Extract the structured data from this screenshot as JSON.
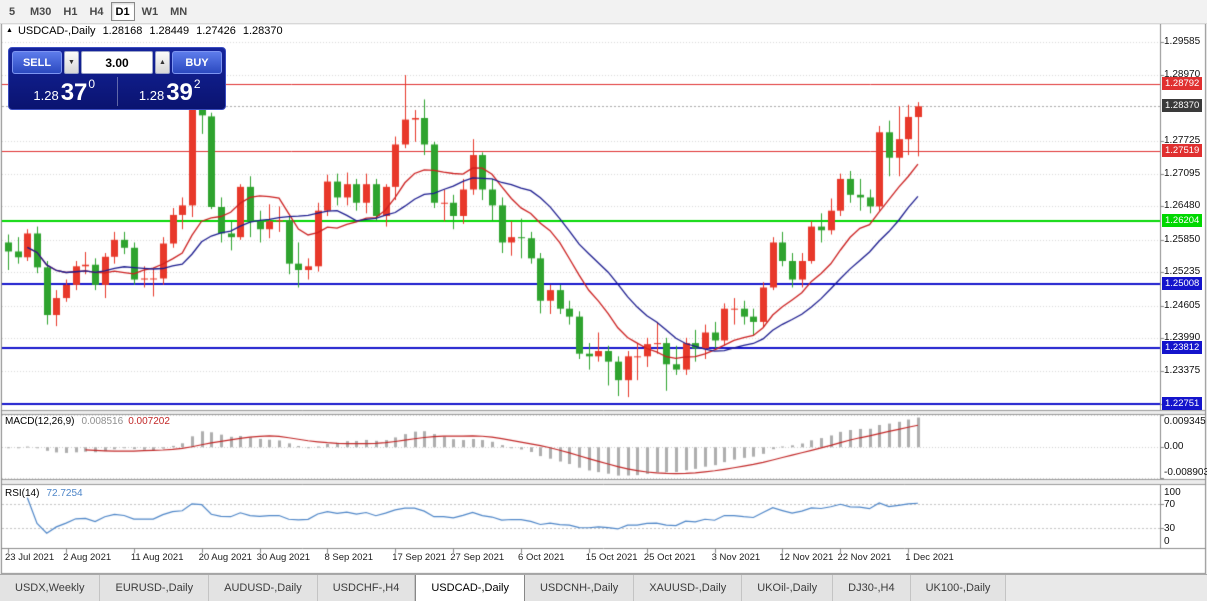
{
  "toolbar": {
    "timeframes": [
      "5",
      "M30",
      "H1",
      "H4",
      "D1",
      "W1",
      "MN"
    ],
    "active": "D1"
  },
  "chart_header": {
    "marker_icon": "▲",
    "title": "USDCAD-,Daily",
    "open": "1.28168",
    "high": "1.28449",
    "low": "1.27426",
    "close": "1.28370"
  },
  "trade_panel": {
    "sell_label": "SELL",
    "buy_label": "BUY",
    "volume": "3.00",
    "spin_down_icon": "▼",
    "spin_up_icon": "▲",
    "bid": {
      "prefix": "1.28",
      "big": "37",
      "sup": "0"
    },
    "ask": {
      "prefix": "1.28",
      "big": "39",
      "sup": "2"
    }
  },
  "chart_data": {
    "type": "candlestick",
    "symbol": "USDCAD-",
    "timeframe": "Daily",
    "current_bar": {
      "open": "1.28168",
      "high": "1.28449",
      "low": "1.27426",
      "close": "1.28370"
    },
    "current_price": "1.28370",
    "price_top": 1.29717,
    "price_bottom": 1.22637,
    "y_axis_ticks": [
      "1.29585",
      "1.28970",
      "1.27725",
      "1.27095",
      "1.26480",
      "1.25850",
      "1.25235",
      "1.24605",
      "1.23990",
      "1.23375",
      "1.22745"
    ],
    "x_ticks": [
      {
        "label": "23 Jul 2021",
        "index": 0
      },
      {
        "label": "2 Aug 2021",
        "index": 6
      },
      {
        "label": "11 Aug 2021",
        "index": 13
      },
      {
        "label": "20 Aug 2021",
        "index": 20
      },
      {
        "label": "30 Aug 2021",
        "index": 26
      },
      {
        "label": "8 Sep 2021",
        "index": 33
      },
      {
        "label": "17 Sep 2021",
        "index": 40
      },
      {
        "label": "27 Sep 2021",
        "index": 46
      },
      {
        "label": "6 Oct 2021",
        "index": 53
      },
      {
        "label": "15 Oct 2021",
        "index": 60
      },
      {
        "label": "25 Oct 2021",
        "index": 66
      },
      {
        "label": "3 Nov 2021",
        "index": 73
      },
      {
        "label": "12 Nov 2021",
        "index": 80
      },
      {
        "label": "22 Nov 2021",
        "index": 86
      },
      {
        "label": "1 Dec 2021",
        "index": 93
      }
    ],
    "levels": [
      {
        "price": 1.28792,
        "label": "1.28792",
        "color": "#e03030",
        "width": 1
      },
      {
        "price": 1.27519,
        "label": "1.27519",
        "color": "#e03030",
        "width": 1
      },
      {
        "price": 1.26204,
        "label": "1.26204",
        "color": "#00d800",
        "width": 2
      },
      {
        "price": 1.25008,
        "label": "1.25008",
        "color": "#1414cc",
        "width": 2
      },
      {
        "price": 1.23812,
        "label": "1.23812",
        "color": "#1414cc",
        "width": 2
      },
      {
        "price": 1.22751,
        "label": "1.22751",
        "color": "#1414cc",
        "width": 2
      }
    ],
    "bull_color": "#e8382a",
    "bear_color": "#2ea32e",
    "ma_fast_color": "#cc2020",
    "ma_slow_color": "#1c1c8f",
    "grid_color": "#d8d8d8",
    "bid_tag_bg": "#3a3a3a",
    "open": [
      1.258,
      1.2563,
      1.2552,
      1.2597,
      1.2533,
      1.2443,
      1.2475,
      1.25,
      1.2535,
      1.2538,
      1.25,
      1.2553,
      1.2585,
      1.257,
      1.251,
      1.2512,
      1.2512,
      1.2578,
      1.2632,
      1.265,
      1.2832,
      1.2818,
      1.2647,
      1.2597,
      1.259,
      1.2685,
      1.262,
      1.2605,
      1.262,
      1.2622,
      1.254,
      1.2528,
      1.2535,
      1.264,
      1.2695,
      1.2665,
      1.269,
      1.2655,
      1.269,
      1.263,
      1.2685,
      1.2765,
      1.2812,
      1.2815,
      1.2765,
      1.2655,
      1.2655,
      1.263,
      1.268,
      1.2745,
      1.268,
      1.265,
      1.258,
      1.259,
      1.2588,
      1.255,
      1.247,
      1.249,
      1.2455,
      1.244,
      1.237,
      1.2365,
      1.2375,
      1.2355,
      1.232,
      1.2365,
      1.2365,
      1.2388,
      1.239,
      1.235,
      1.234,
      1.239,
      1.238,
      1.241,
      1.2395,
      1.2455,
      1.2455,
      1.244,
      1.243,
      1.2495,
      1.258,
      1.2545,
      1.251,
      1.2545,
      1.261,
      1.2603,
      1.264,
      1.27,
      1.267,
      1.2665,
      1.2648,
      1.2788,
      1.274,
      1.2775,
      1.28168
    ],
    "high": [
      1.2595,
      1.259,
      1.2605,
      1.261,
      1.2545,
      1.249,
      1.251,
      1.2545,
      1.2562,
      1.255,
      1.256,
      1.26,
      1.26,
      1.258,
      1.2535,
      1.253,
      1.259,
      1.2645,
      1.2665,
      1.2841,
      1.286,
      1.2825,
      1.2665,
      1.262,
      1.269,
      1.2705,
      1.264,
      1.2652,
      1.2648,
      1.263,
      1.258,
      1.255,
      1.2655,
      1.2708,
      1.271,
      1.2712,
      1.27,
      1.271,
      1.27,
      1.269,
      1.278,
      1.2896,
      1.283,
      1.285,
      1.277,
      1.268,
      1.267,
      1.27,
      1.2775,
      1.275,
      1.27,
      1.2665,
      1.262,
      1.2625,
      1.26,
      1.256,
      1.25,
      1.25,
      1.247,
      1.245,
      1.239,
      1.241,
      1.2385,
      1.2365,
      1.2375,
      1.239,
      1.24,
      1.243,
      1.24,
      1.2385,
      1.24,
      1.2415,
      1.2425,
      1.243,
      1.2465,
      1.2475,
      1.247,
      1.2455,
      1.2505,
      1.259,
      1.26,
      1.256,
      1.256,
      1.262,
      1.2635,
      1.2663,
      1.271,
      1.2715,
      1.27,
      1.268,
      1.28,
      1.281,
      1.2837,
      1.284,
      1.28449
    ],
    "low": [
      1.2528,
      1.254,
      1.2545,
      1.2522,
      1.2425,
      1.2422,
      1.2468,
      1.249,
      1.252,
      1.249,
      1.2475,
      1.254,
      1.2558,
      1.25,
      1.2495,
      1.2478,
      1.25,
      1.257,
      1.2605,
      1.2628,
      1.2785,
      1.2643,
      1.258,
      1.2565,
      1.2585,
      1.259,
      1.258,
      1.2588,
      1.26,
      1.252,
      1.2495,
      1.251,
      1.2525,
      1.263,
      1.265,
      1.265,
      1.264,
      1.2635,
      1.262,
      1.261,
      1.266,
      1.2758,
      1.277,
      1.2745,
      1.2645,
      1.262,
      1.2605,
      1.2615,
      1.267,
      1.266,
      1.262,
      1.256,
      1.2555,
      1.255,
      1.254,
      1.2446,
      1.2445,
      1.2445,
      1.2425,
      1.236,
      1.234,
      1.2355,
      1.231,
      1.229,
      1.2288,
      1.232,
      1.2345,
      1.237,
      1.23,
      1.233,
      1.233,
      1.2355,
      1.236,
      1.238,
      1.2385,
      1.2425,
      1.2425,
      1.2405,
      1.242,
      1.249,
      1.2535,
      1.2495,
      1.2495,
      1.254,
      1.258,
      1.2595,
      1.263,
      1.2655,
      1.264,
      1.2635,
      1.264,
      1.2705,
      1.2705,
      1.2745,
      1.27426
    ],
    "close": [
      1.2563,
      1.2552,
      1.2597,
      1.2533,
      1.2443,
      1.2475,
      1.25,
      1.2535,
      1.2538,
      1.25,
      1.2553,
      1.2585,
      1.257,
      1.251,
      1.2512,
      1.2512,
      1.2578,
      1.2632,
      1.265,
      1.2832,
      1.282,
      1.2647,
      1.2597,
      1.259,
      1.2685,
      1.262,
      1.2605,
      1.262,
      1.2622,
      1.254,
      1.2528,
      1.2535,
      1.264,
      1.2695,
      1.2665,
      1.269,
      1.2655,
      1.269,
      1.263,
      1.2685,
      1.2765,
      1.2812,
      1.2815,
      1.2765,
      1.2655,
      1.2655,
      1.263,
      1.268,
      1.2745,
      1.268,
      1.265,
      1.258,
      1.259,
      1.2588,
      1.255,
      1.247,
      1.249,
      1.2455,
      1.244,
      1.237,
      1.2365,
      1.2375,
      1.2355,
      1.232,
      1.2365,
      1.2365,
      1.2388,
      1.239,
      1.235,
      1.234,
      1.239,
      1.238,
      1.241,
      1.2395,
      1.2455,
      1.2455,
      1.244,
      1.243,
      1.2495,
      1.258,
      1.2545,
      1.251,
      1.2545,
      1.261,
      1.2603,
      1.264,
      1.27,
      1.267,
      1.2665,
      1.2648,
      1.2788,
      1.274,
      1.2775,
      1.2817,
      1.2837
    ]
  },
  "macd": {
    "name": "MACD(12,26,9)",
    "value_main": "0.008516",
    "value_signal": "0.007202",
    "axis_max_label": "0.009345",
    "axis_zero_label": "0.00",
    "axis_min_label": "-0.008903",
    "axis_max": 0.009345,
    "axis_min": -0.008903,
    "histogram_color": "#aeaeae",
    "signal_color": "#c22828"
  },
  "rsi": {
    "name": "RSI(14)",
    "value": "72.7254",
    "axis_labels": [
      "100",
      "70",
      "30",
      "0"
    ],
    "overbought": 70,
    "oversold": 30,
    "line_color": "#4e86c8"
  },
  "tabs": {
    "items": [
      "USDX,Weekly",
      "EURUSD-,Daily",
      "AUDUSD-,Daily",
      "USDCHF-,H4",
      "USDCAD-,Daily",
      "USDCNH-,Daily",
      "XAUUSD-,Daily",
      "UKOil-,Daily",
      "DJ30-,H4",
      "UK100-,Daily"
    ],
    "active_index": 4
  }
}
